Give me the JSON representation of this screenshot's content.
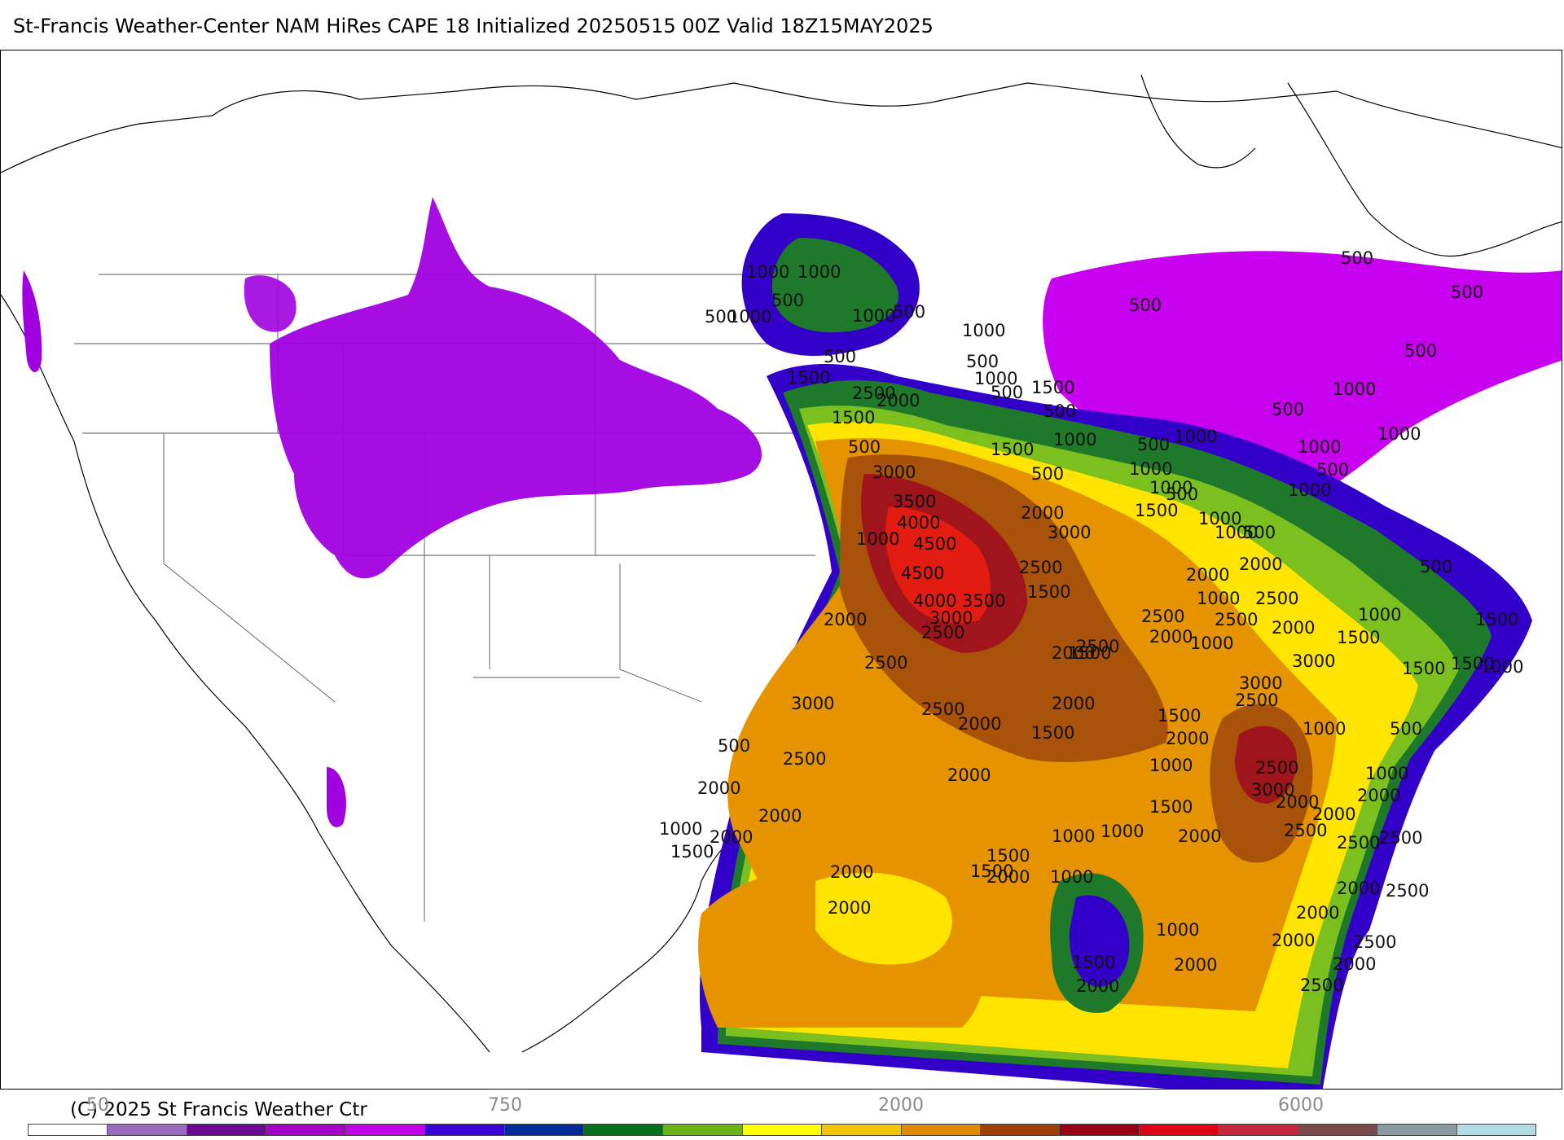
{
  "header": {
    "title": "St-Francis Weather-Center NAM HiRes CAPE  18 Initialized 20250515 00Z Valid 18Z15MAY2025"
  },
  "footer": {
    "credit": "(C) 2025 St Francis Weather Ctr"
  },
  "colorbar": {
    "tick_labels": [
      "50",
      "750",
      "2000",
      "6000"
    ],
    "colors": [
      "#ffffff",
      "#9a6bbf",
      "#6a0a90",
      "#a400c8",
      "#c000e8",
      "#3a00d8",
      "#002a9a",
      "#00701a",
      "#6cb31a",
      "#ffff00",
      "#f5c400",
      "#e08a00",
      "#a04000",
      "#9a0014",
      "#e00014",
      "#c4283c",
      "#7a4a4a",
      "#8a9aa0",
      "#b0dce8"
    ]
  },
  "map": {
    "contour_labels": [
      "500",
      "1000",
      "1500",
      "2000",
      "2500",
      "3000",
      "3500",
      "4000",
      "4500"
    ],
    "palette": {
      "light_purple": "#a000e0",
      "magenta": "#c800f0",
      "blue": "#3200c8",
      "green": "#1e7a2a",
      "light_green": "#7cc020",
      "yellow": "#ffe400",
      "orange": "#e59400",
      "brown": "#a8520a",
      "dark_red": "#a0141c",
      "red": "#e21c10"
    }
  }
}
